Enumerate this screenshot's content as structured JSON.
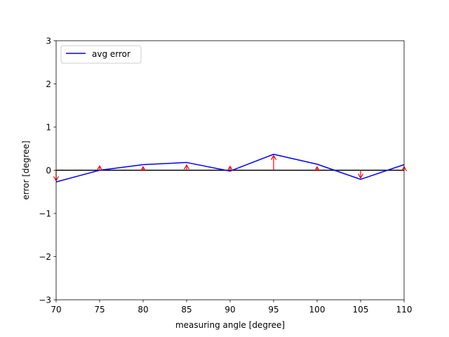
{
  "chart_data": {
    "type": "line",
    "xlabel": "measuring angle [degree]",
    "ylabel": "error [degree]",
    "xlim": [
      70,
      110
    ],
    "ylim": [
      -3,
      3
    ],
    "xticks": [
      70,
      75,
      80,
      85,
      90,
      95,
      100,
      105,
      110
    ],
    "yticks": [
      -3,
      -2,
      -1,
      0,
      1,
      2,
      3
    ],
    "ytick_labels": [
      "−3",
      "−2",
      "−1",
      "0",
      "1",
      "2",
      "3"
    ],
    "grid": false,
    "legend_position": "upper-left",
    "reference_line": {
      "y": 0,
      "color": "#000000"
    },
    "series": [
      {
        "name": "avg error",
        "color": "#0000ff",
        "x": [
          70,
          75,
          80,
          85,
          90,
          95,
          100,
          105,
          110
        ],
        "y": [
          -0.27,
          0.0,
          0.13,
          0.18,
          -0.02,
          0.37,
          0.14,
          -0.21,
          0.13
        ]
      }
    ],
    "error_arrows": {
      "color": "#ff0000",
      "x": [
        70,
        75,
        80,
        85,
        90,
        95,
        100,
        105,
        110
      ],
      "y": [
        -0.24,
        0.1,
        0.08,
        0.12,
        0.09,
        0.34,
        0.08,
        -0.18,
        0.08
      ]
    }
  }
}
